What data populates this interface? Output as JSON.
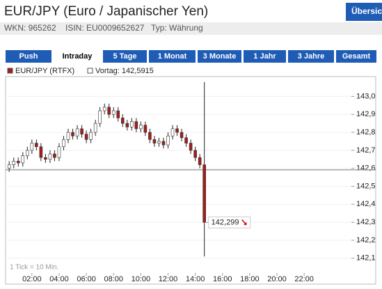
{
  "header": {
    "title": "EUR/JPY (Euro / Japanischer Yen)",
    "button": "Übersic",
    "wkn": "WKN: 965262",
    "isin": "ISIN: EU0009652627",
    "typ": "Typ: Währung"
  },
  "tabs": [
    "Push",
    "Intraday",
    "5 Tage",
    "1 Monat",
    "3 Monate",
    "1 Jahr",
    "3 Jahre",
    "Gesamt"
  ],
  "active_tab": 1,
  "chart_data": {
    "type": "candlestick",
    "legend": [
      "EUR/JPY (RTFX)",
      "Vortag: 142,5915"
    ],
    "note": "1 Tick = 10 Min.",
    "prev_close": 142.5915,
    "x": [
      20,
      40,
      60,
      80,
      100,
      120,
      140,
      160,
      180,
      200,
      220,
      240,
      260,
      280,
      300,
      320,
      340,
      360,
      380,
      400,
      420,
      440,
      460,
      480,
      500,
      520,
      540,
      560,
      580,
      600,
      620,
      640,
      660,
      680,
      700,
      720,
      740,
      760,
      780,
      800,
      820,
      840,
      860,
      880
    ],
    "open": [
      142.6,
      142.62,
      142.64,
      142.63,
      142.67,
      142.7,
      142.74,
      142.72,
      142.66,
      142.65,
      142.68,
      142.66,
      142.72,
      142.76,
      142.8,
      142.78,
      142.82,
      142.79,
      142.76,
      142.8,
      142.85,
      142.92,
      142.94,
      142.9,
      142.92,
      142.88,
      142.85,
      142.83,
      142.86,
      142.82,
      142.84,
      142.8,
      142.76,
      142.74,
      142.75,
      142.73,
      142.78,
      142.82,
      142.8,
      142.77,
      142.74,
      142.7,
      142.66,
      142.62
    ],
    "high": [
      142.64,
      142.66,
      142.66,
      142.69,
      142.72,
      142.76,
      142.76,
      142.74,
      142.68,
      142.7,
      142.7,
      142.74,
      142.78,
      142.82,
      142.82,
      142.84,
      142.84,
      142.81,
      142.82,
      142.87,
      142.94,
      142.96,
      142.96,
      142.94,
      142.94,
      142.9,
      142.87,
      142.88,
      142.88,
      142.86,
      142.86,
      142.82,
      142.78,
      142.77,
      142.77,
      142.8,
      142.84,
      142.84,
      142.82,
      142.79,
      142.76,
      142.72,
      142.68,
      143.08
    ],
    "low": [
      142.58,
      142.6,
      142.61,
      142.61,
      142.65,
      142.68,
      142.7,
      142.64,
      142.63,
      142.63,
      142.64,
      142.64,
      142.7,
      142.74,
      142.76,
      142.76,
      142.77,
      142.74,
      142.74,
      142.78,
      142.83,
      142.9,
      142.88,
      142.88,
      142.86,
      142.83,
      142.81,
      142.81,
      142.8,
      142.8,
      142.78,
      142.74,
      142.72,
      142.72,
      142.71,
      142.71,
      142.76,
      142.78,
      142.75,
      142.72,
      142.68,
      142.64,
      142.6,
      142.11
    ],
    "close": [
      142.62,
      142.64,
      142.63,
      142.67,
      142.7,
      142.74,
      142.72,
      142.66,
      142.65,
      142.68,
      142.66,
      142.72,
      142.76,
      142.8,
      142.78,
      142.82,
      142.79,
      142.76,
      142.8,
      142.85,
      142.92,
      142.94,
      142.9,
      142.92,
      142.88,
      142.85,
      142.83,
      142.86,
      142.82,
      142.84,
      142.8,
      142.76,
      142.74,
      142.75,
      142.73,
      142.78,
      142.82,
      142.8,
      142.77,
      142.74,
      142.7,
      142.66,
      142.62,
      142.299
    ],
    "value_labels": {
      "index": 43,
      "label": "142,299"
    },
    "up_color": "#ffffff",
    "down_color": "#a41c1c",
    "xlim": [
      4,
      1528
    ],
    "ylim": [
      142.045,
      143.11
    ],
    "xticks": [
      {
        "value": 120,
        "label": "02:00"
      },
      {
        "value": 240,
        "label": "04:00"
      },
      {
        "value": 360,
        "label": "06:00"
      },
      {
        "value": 480,
        "label": "08:00"
      },
      {
        "value": 600,
        "label": "10:00"
      },
      {
        "value": 720,
        "label": "12:00"
      },
      {
        "value": 840,
        "label": "14:00"
      },
      {
        "value": 960,
        "label": "16:00"
      },
      {
        "value": 1080,
        "label": "18:00"
      },
      {
        "value": 1200,
        "label": "20:00"
      },
      {
        "value": 1320,
        "label": "22:00"
      }
    ],
    "yticks": [
      {
        "value": 142.1,
        "label": "142,1"
      },
      {
        "value": 142.2,
        "label": "142,2"
      },
      {
        "value": 142.3,
        "label": "142,3"
      },
      {
        "value": 142.4,
        "label": "142,4"
      },
      {
        "value": 142.5,
        "label": "142,5"
      },
      {
        "value": 142.6,
        "label": "142,6"
      },
      {
        "value": 142.7,
        "label": "142,7"
      },
      {
        "value": 142.8,
        "label": "142,8"
      },
      {
        "value": 142.9,
        "label": "142,9"
      },
      {
        "value": 143.0,
        "label": "143,0"
      }
    ],
    "grid": true
  }
}
